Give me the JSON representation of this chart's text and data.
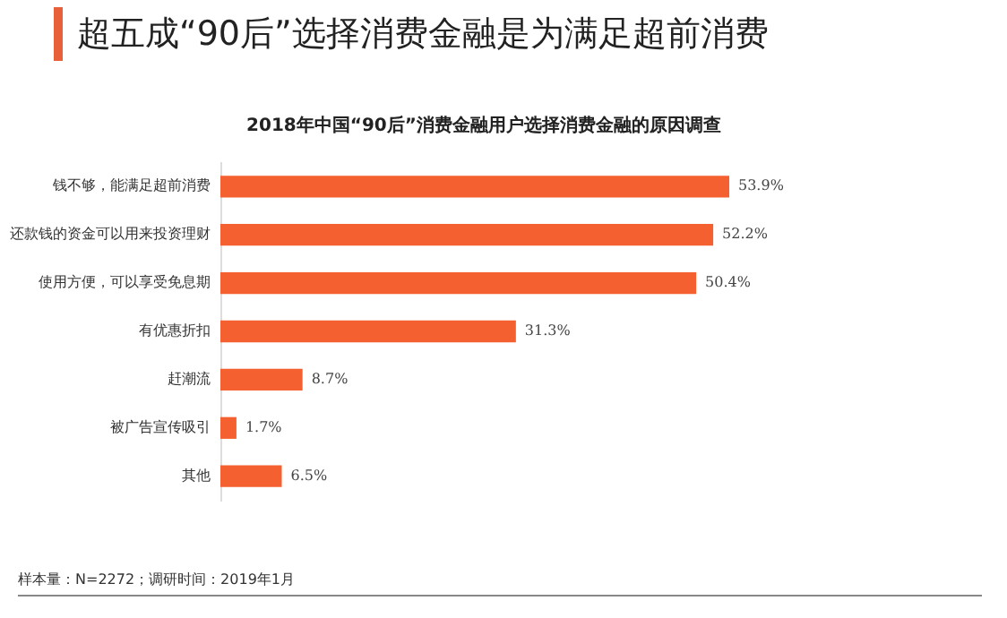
{
  "chart_data": {
    "type": "bar",
    "orientation": "horizontal",
    "title": "超五成“90后”选择消费金融是为满足超前消费",
    "subtitle": "2018年中国“90后”消费金融用户选择消费金融的原因调查",
    "categories": [
      "钱不够，能满足超前消费",
      "还款钱的资金可以用来投资理财",
      "使用方便，可以享受免息期",
      "有优惠折扣",
      "赶潮流",
      "被广告宣传吸引",
      "其他"
    ],
    "values": [
      53.9,
      52.2,
      50.4,
      31.3,
      8.7,
      1.7,
      6.5
    ],
    "value_labels": [
      "53.9%",
      "52.2%",
      "50.4%",
      "31.3%",
      "8.7%",
      "1.7%",
      "6.5%"
    ],
    "color": "#f4602f",
    "annotations": [
      "样本量：N=2272；调研时间：2019年1月"
    ]
  }
}
